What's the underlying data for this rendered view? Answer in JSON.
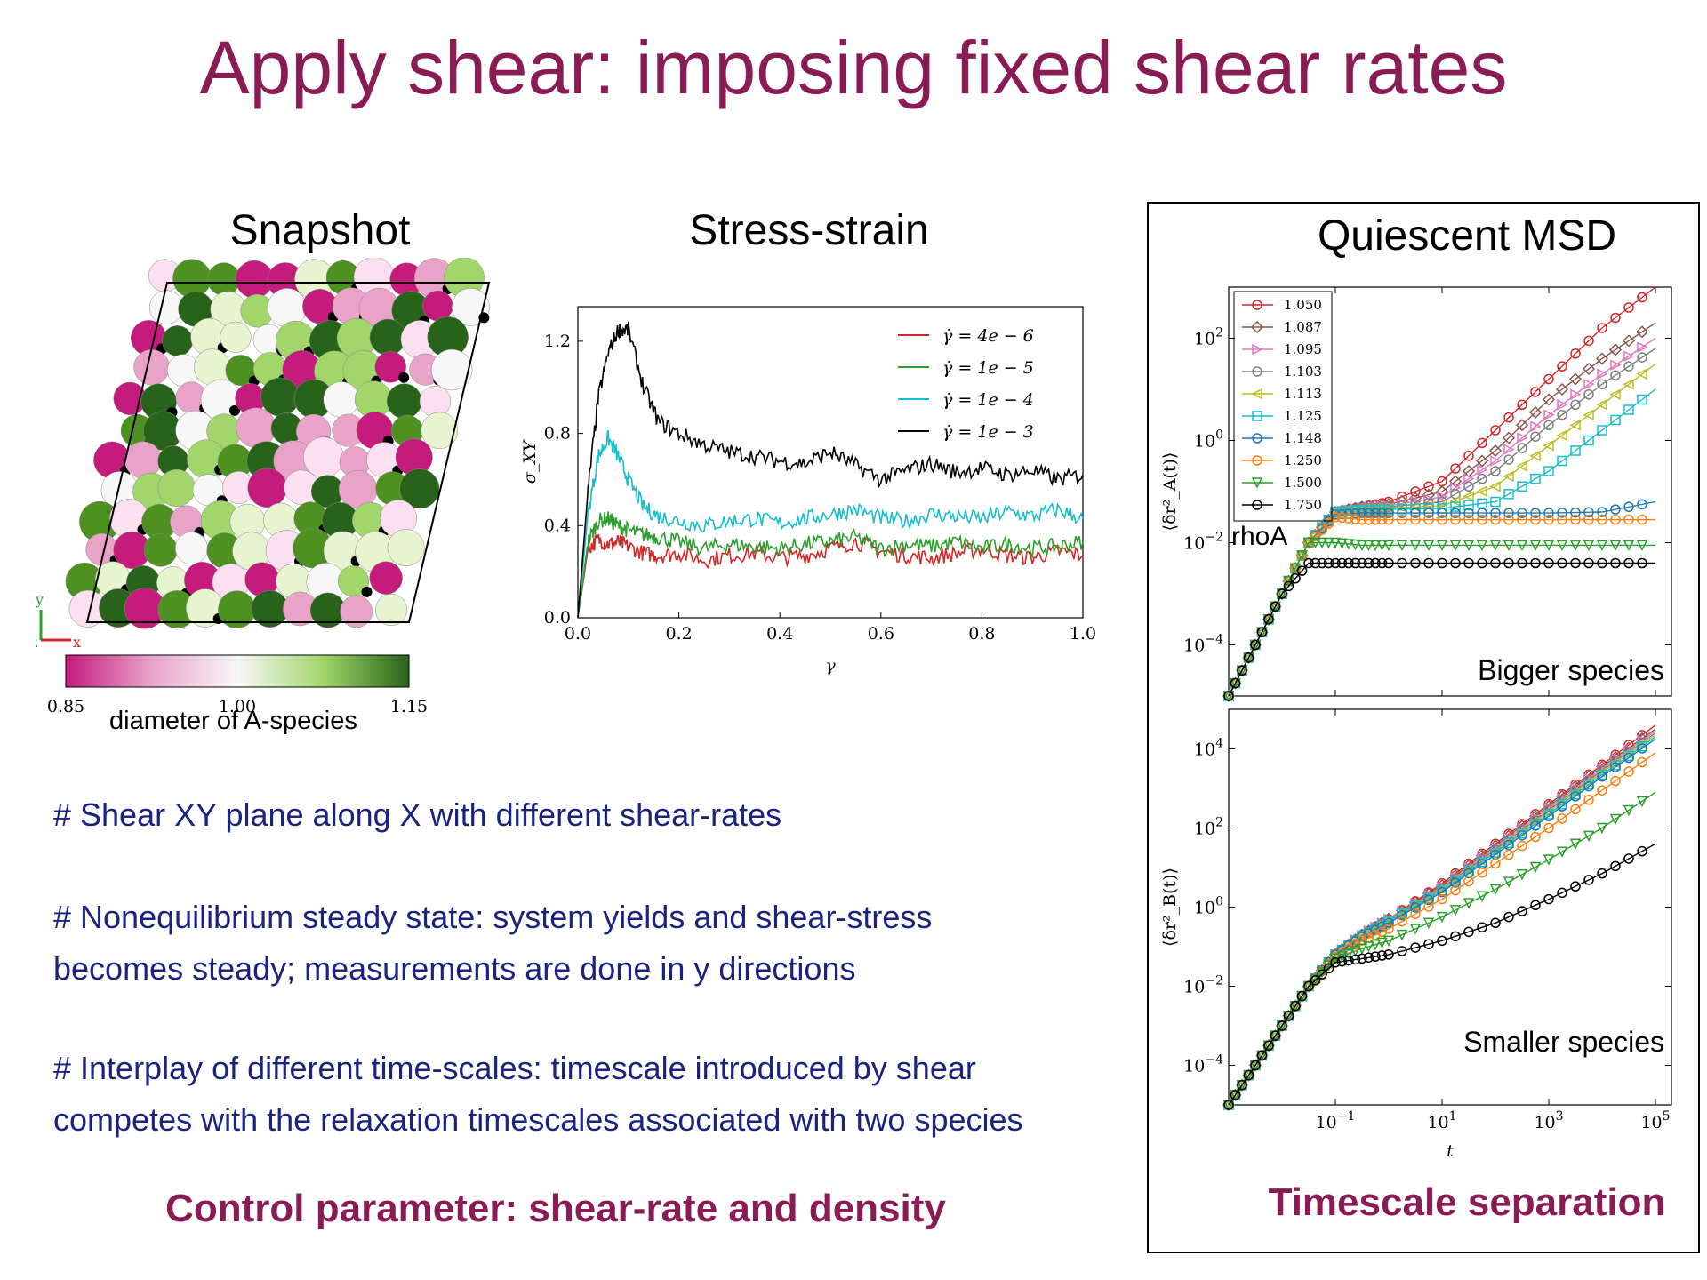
{
  "slide": {
    "title": "Apply shear: imposing fixed shear rates",
    "snapshot_title": "Snapshot",
    "stress_title": "Stress-strain",
    "msd_title": "Quiescent MSD",
    "bullets": [
      "# Shear XY plane along X with different shear-rates",
      "# Nonequilibrium steady state: system yields and shear-stress becomes steady; measurements are done in y directions",
      "# Interplay of different time-scales: timescale introduced by shear competes with the relaxation timescales associated with two species"
    ],
    "control": "Control parameter: shear-rate and density",
    "timescale": "Timescale separation",
    "colors": {
      "accent": "#8a1c55",
      "text_blue": "#1a237e"
    }
  },
  "snapshot": {
    "colorbar_ticks": [
      "0.85",
      "1.00",
      "1.15"
    ],
    "colorbar_label": "diameter of A-species",
    "colormap": [
      "#c51b7d",
      "#e9a3c9",
      "#fde0ef",
      "#f7f7f7",
      "#e6f5d0",
      "#a1d76a",
      "#4d9221",
      "#276419"
    ],
    "axis_labels": [
      "y",
      "z",
      "x"
    ]
  },
  "chart_data": [
    {
      "type": "line",
      "ylabel": "σ_XY",
      "xlabel": "γ",
      "xlim": [
        0.0,
        1.0
      ],
      "ylim": [
        0.0,
        1.35
      ],
      "xticks": [
        "0.0",
        "0.2",
        "0.4",
        "0.6",
        "0.8",
        "1.0"
      ],
      "yticks": [
        "0.0",
        "0.4",
        "0.8",
        "1.2"
      ],
      "legend_position": "top-right",
      "x": [
        0.0,
        0.02,
        0.04,
        0.06,
        0.08,
        0.1,
        0.13,
        0.16,
        0.2,
        0.25,
        0.3,
        0.35,
        0.4,
        0.45,
        0.5,
        0.55,
        0.6,
        0.65,
        0.7,
        0.75,
        0.8,
        0.85,
        0.9,
        0.95,
        1.0
      ],
      "series": [
        {
          "name": "γ̇ = 4e − 6",
          "color": "#d62728",
          "values": [
            0.0,
            0.3,
            0.34,
            0.32,
            0.33,
            0.31,
            0.28,
            0.27,
            0.28,
            0.25,
            0.27,
            0.28,
            0.26,
            0.27,
            0.3,
            0.33,
            0.29,
            0.27,
            0.26,
            0.28,
            0.3,
            0.27,
            0.26,
            0.29,
            0.27
          ]
        },
        {
          "name": "γ̇ = 1e − 5",
          "color": "#2ca02c",
          "values": [
            0.0,
            0.33,
            0.42,
            0.43,
            0.4,
            0.38,
            0.36,
            0.35,
            0.33,
            0.3,
            0.32,
            0.31,
            0.3,
            0.32,
            0.33,
            0.35,
            0.3,
            0.32,
            0.31,
            0.33,
            0.3,
            0.32,
            0.3,
            0.31,
            0.33
          ]
        },
        {
          "name": "γ̇ = 1e − 4",
          "color": "#17becf",
          "values": [
            0.0,
            0.45,
            0.7,
            0.78,
            0.7,
            0.6,
            0.48,
            0.44,
            0.42,
            0.4,
            0.42,
            0.43,
            0.41,
            0.43,
            0.45,
            0.47,
            0.43,
            0.42,
            0.45,
            0.44,
            0.43,
            0.46,
            0.44,
            0.47,
            0.43
          ]
        },
        {
          "name": "γ̇ = 1e − 3",
          "color": "#000000",
          "values": [
            0.0,
            0.55,
            0.95,
            1.15,
            1.25,
            1.25,
            1.0,
            0.85,
            0.8,
            0.75,
            0.72,
            0.7,
            0.68,
            0.67,
            0.72,
            0.66,
            0.6,
            0.64,
            0.67,
            0.63,
            0.65,
            0.62,
            0.64,
            0.6,
            0.62
          ]
        }
      ]
    },
    {
      "type": "line",
      "ylabel": "⟨δr²_A(t)⟩",
      "yscale": "log",
      "ylim_exp": [
        -5,
        3
      ],
      "yticks": [
        "10−4",
        "10−2",
        "100",
        "102"
      ],
      "annotation": "rhoA",
      "label": "Bigger species",
      "legend_position": "top-left",
      "x_exp": [
        -3,
        -2.5,
        -2,
        -1.5,
        -1,
        -0.5,
        0,
        1,
        2,
        3,
        4,
        5
      ],
      "series": [
        {
          "name": "1.050",
          "color": "#d62728",
          "values_exp": [
            -5,
            -4,
            -3,
            -2,
            -1.4,
            -1.3,
            -1.2,
            -0.8,
            0.2,
            1.2,
            2.2,
            3.0
          ]
        },
        {
          "name": "1.087",
          "color": "#8c564b",
          "values_exp": [
            -5,
            -4,
            -3,
            -2,
            -1.4,
            -1.3,
            -1.25,
            -1.0,
            -0.2,
            0.8,
            1.6,
            2.3
          ]
        },
        {
          "name": "1.095",
          "color": "#e377c2",
          "values_exp": [
            -5,
            -4,
            -3,
            -2,
            -1.4,
            -1.32,
            -1.28,
            -1.1,
            -0.4,
            0.5,
            1.3,
            2.0
          ]
        },
        {
          "name": "1.103",
          "color": "#7f7f7f",
          "values_exp": [
            -5,
            -4,
            -3,
            -2,
            -1.4,
            -1.33,
            -1.3,
            -1.2,
            -0.6,
            0.3,
            1.1,
            1.8
          ]
        },
        {
          "name": "1.113",
          "color": "#bcbd22",
          "values_exp": [
            -5,
            -4,
            -3,
            -2,
            -1.4,
            -1.35,
            -1.32,
            -1.28,
            -0.9,
            -0.1,
            0.7,
            1.5
          ]
        },
        {
          "name": "1.125",
          "color": "#17becf",
          "values_exp": [
            -5,
            -4,
            -3,
            -2,
            -1.4,
            -1.36,
            -1.35,
            -1.33,
            -1.2,
            -0.6,
            0.2,
            1.0
          ]
        },
        {
          "name": "1.148",
          "color": "#1f77b4",
          "values_exp": [
            -5,
            -4,
            -3,
            -2,
            -1.45,
            -1.42,
            -1.42,
            -1.42,
            -1.42,
            -1.42,
            -1.4,
            -1.2
          ]
        },
        {
          "name": "1.250",
          "color": "#ff7f0e",
          "values_exp": [
            -5,
            -4,
            -3,
            -2,
            -1.5,
            -1.55,
            -1.55,
            -1.55,
            -1.55,
            -1.55,
            -1.55,
            -1.55
          ]
        },
        {
          "name": "1.500",
          "color": "#2ca02c",
          "values_exp": [
            -5,
            -4,
            -3,
            -2,
            -2.0,
            -2.05,
            -2.05,
            -2.05,
            -2.05,
            -2.05,
            -2.05,
            -2.05
          ]
        },
        {
          "name": "1.750",
          "color": "#000000",
          "values_exp": [
            -5,
            -4,
            -3,
            -2.4,
            -2.4,
            -2.4,
            -2.4,
            -2.4,
            -2.4,
            -2.4,
            -2.4,
            -2.4
          ]
        }
      ]
    },
    {
      "type": "line",
      "ylabel": "⟨δr²_B(t)⟩",
      "xlabel": "t",
      "xscale": "log",
      "yscale": "log",
      "xlim_exp": [
        -3,
        5.3
      ],
      "ylim_exp": [
        -5,
        5
      ],
      "xticks": [
        "10−1",
        "101",
        "103",
        "105"
      ],
      "yticks": [
        "10−4",
        "10−2",
        "100",
        "102",
        "104"
      ],
      "label": "Smaller species",
      "x_exp": [
        -3,
        -2.5,
        -2,
        -1.5,
        -1,
        -0.5,
        0,
        1,
        2,
        3,
        4,
        5
      ],
      "series": [
        {
          "name": "1.050",
          "color": "#d62728",
          "values_exp": [
            -5,
            -4,
            -3,
            -2,
            -1.2,
            -0.7,
            -0.3,
            0.6,
            1.6,
            2.6,
            3.6,
            4.6
          ]
        },
        {
          "name": "1.087",
          "color": "#8c564b",
          "values_exp": [
            -5,
            -4,
            -3,
            -2,
            -1.2,
            -0.7,
            -0.3,
            0.55,
            1.55,
            2.55,
            3.55,
            4.5
          ]
        },
        {
          "name": "1.095",
          "color": "#e377c2",
          "values_exp": [
            -5,
            -4,
            -3,
            -2,
            -1.2,
            -0.7,
            -0.3,
            0.5,
            1.5,
            2.5,
            3.5,
            4.45
          ]
        },
        {
          "name": "1.103",
          "color": "#7f7f7f",
          "values_exp": [
            -5,
            -4,
            -3,
            -2,
            -1.2,
            -0.72,
            -0.33,
            0.48,
            1.45,
            2.45,
            3.45,
            4.4
          ]
        },
        {
          "name": "1.113",
          "color": "#bcbd22",
          "values_exp": [
            -5,
            -4,
            -3,
            -2,
            -1.2,
            -0.73,
            -0.35,
            0.45,
            1.4,
            2.4,
            3.4,
            4.35
          ]
        },
        {
          "name": "1.125",
          "color": "#17becf",
          "values_exp": [
            -5,
            -4,
            -3,
            -2,
            -1.2,
            -0.74,
            -0.37,
            0.42,
            1.38,
            2.35,
            3.35,
            4.3
          ]
        },
        {
          "name": "1.148",
          "color": "#1f77b4",
          "values_exp": [
            -5,
            -4,
            -3,
            -2,
            -1.2,
            -0.75,
            -0.4,
            0.38,
            1.33,
            2.3,
            3.3,
            4.25
          ]
        },
        {
          "name": "1.250",
          "color": "#ff7f0e",
          "values_exp": [
            -5,
            -4,
            -3,
            -2,
            -1.25,
            -0.85,
            -0.55,
            0.2,
            1.1,
            2.0,
            2.95,
            3.9
          ]
        },
        {
          "name": "1.500",
          "color": "#2ca02c",
          "values_exp": [
            -5,
            -4,
            -3,
            -2,
            -1.3,
            -1.05,
            -0.85,
            -0.25,
            0.45,
            1.2,
            2.0,
            2.9
          ]
        },
        {
          "name": "1.750",
          "color": "#000000",
          "values_exp": [
            -5,
            -4,
            -3,
            -2,
            -1.4,
            -1.3,
            -1.2,
            -0.85,
            -0.4,
            0.2,
            0.85,
            1.6
          ]
        }
      ]
    }
  ]
}
